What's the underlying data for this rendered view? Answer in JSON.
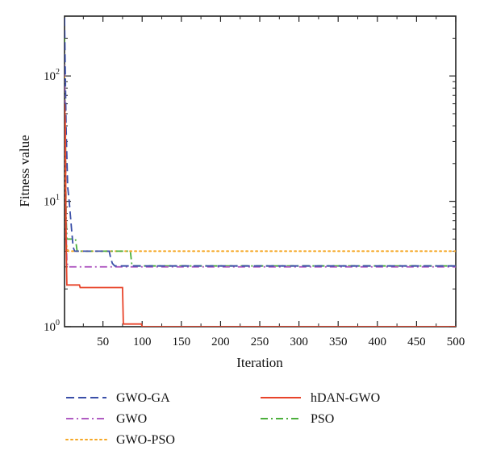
{
  "chart_data": {
    "type": "line",
    "title": "",
    "xlabel": "Iteration",
    "ylabel": "Fitness value",
    "xlim": [
      1,
      500
    ],
    "ylim": [
      1,
      300
    ],
    "yscale": "log",
    "xticks": [
      50,
      100,
      150,
      200,
      250,
      300,
      350,
      400,
      450,
      500
    ],
    "yticks": [
      {
        "value": 1,
        "base": "10",
        "exp": "0"
      },
      {
        "value": 10,
        "base": "10",
        "exp": "1"
      },
      {
        "value": 100,
        "base": "10",
        "exp": "2"
      }
    ],
    "grid": false,
    "legend_position": "bottom",
    "series": [
      {
        "name": "GWO-GA",
        "color": "#3a4fa8",
        "dash": "dashed",
        "x": [
          1,
          3,
          5,
          7,
          10,
          12,
          14,
          20,
          58,
          60,
          62,
          65,
          100,
          500
        ],
        "y": [
          290,
          40,
          13,
          10,
          6,
          4.3,
          4.0,
          4.0,
          4.0,
          3.5,
          3.2,
          3.05,
          3.05,
          3.05
        ]
      },
      {
        "name": "hDAN-GWO",
        "color": "#e8442a",
        "dash": "solid",
        "x": [
          1,
          2,
          3,
          4,
          5,
          6,
          20,
          21,
          75,
          76,
          99,
          100,
          500
        ],
        "y": [
          60,
          40,
          5,
          2.15,
          2.15,
          2.15,
          2.15,
          2.05,
          2.05,
          1.05,
          1.05,
          1.0,
          1.0
        ]
      },
      {
        "name": "GWO",
        "color": "#b05cc2",
        "dash": "dashdot",
        "x": [
          1,
          2,
          3,
          4,
          5,
          500
        ],
        "y": [
          150,
          30,
          6,
          3.4,
          3.0,
          3.0
        ]
      },
      {
        "name": "PSO",
        "color": "#4caf3c",
        "dash": "dashdot",
        "x": [
          1,
          2,
          3,
          4,
          6,
          15,
          17,
          85,
          87,
          500
        ],
        "y": [
          200,
          50,
          8,
          5,
          5,
          5,
          4.0,
          4.0,
          3.05,
          3.05
        ]
      },
      {
        "name": "GWO-PSO",
        "color": "#f5a623",
        "dash": "dotted",
        "x": [
          1,
          2,
          3,
          4,
          6,
          500
        ],
        "y": [
          100,
          15,
          5,
          4.2,
          4.0,
          4.0
        ]
      }
    ]
  }
}
